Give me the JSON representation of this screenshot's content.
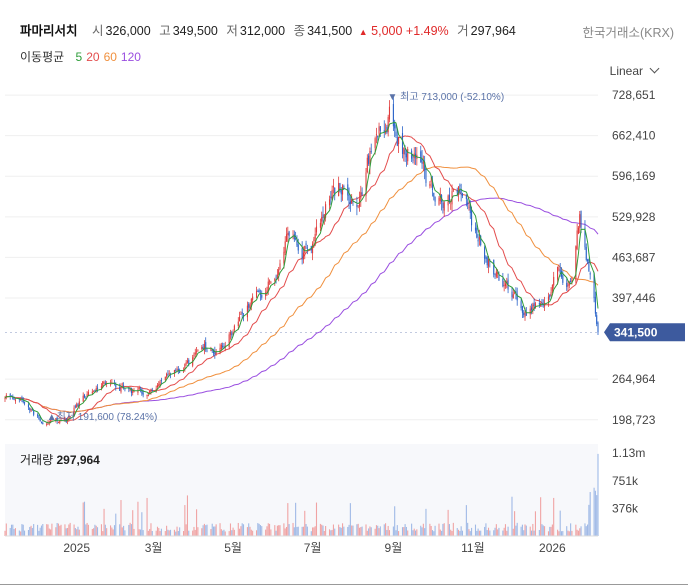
{
  "header": {
    "name": "파마리서치",
    "open_label": "시",
    "open": "326,000",
    "high_label": "고",
    "high": "349,500",
    "low_label": "저",
    "low": "312,000",
    "close_label": "종",
    "close": "341,500",
    "change": "5,000",
    "change_pct": "+1.49%",
    "volume_label": "거",
    "volume": "297,964",
    "exchange": "한국거래소(KRX)"
  },
  "indicator": {
    "label": "이동평균",
    "periods": [
      {
        "value": "5",
        "color": "#2e9d3a"
      },
      {
        "value": "20",
        "color": "#e34d4d"
      },
      {
        "value": "60",
        "color": "#f0903e"
      },
      {
        "value": "120",
        "color": "#9a4fe0"
      }
    ]
  },
  "scale_mode": "Linear",
  "chart_data": {
    "type": "candlestick",
    "price_axis": {
      "ticks": [
        728651,
        662410,
        596169,
        529928,
        463687,
        397446,
        264964,
        198723
      ],
      "tick_labels": [
        "728,651",
        "662,410",
        "596,169",
        "529,928",
        "463,687",
        "397,446",
        "264,964",
        "198,723"
      ],
      "range": [
        182000,
        750000
      ]
    },
    "x_axis": {
      "tick_labels": [
        "2025",
        "3월",
        "5월",
        "7월",
        "9월",
        "11월",
        "2026"
      ],
      "tick_dates": [
        "2025-01-01",
        "2025-03-01",
        "2025-05-01",
        "2025-07-01",
        "2025-09-01",
        "2025-11-01",
        "2026-01-01"
      ],
      "range": [
        "2024-11-07",
        "2026-02-05"
      ]
    },
    "current_price": {
      "value": 341500,
      "label": "341,500",
      "color": "#3d5a9e"
    },
    "max_annotation": {
      "label": "최고",
      "value": "713,000",
      "pct": "(-52.10%)",
      "date": "2025-08-29"
    },
    "min_annotation": {
      "label": "최저",
      "value": "191,600",
      "pct": "(78.24%)",
      "date": "2024-12-09"
    },
    "price_path": [
      [
        "2024-11-07",
        235000
      ],
      [
        "2024-11-20",
        225000
      ],
      [
        "2024-12-09",
        191600
      ],
      [
        "2024-12-25",
        200000
      ],
      [
        "2025-01-10",
        245000
      ],
      [
        "2025-01-20",
        262000
      ],
      [
        "2025-02-05",
        255000
      ],
      [
        "2025-02-25",
        240000
      ],
      [
        "2025-03-15",
        270000
      ],
      [
        "2025-04-05",
        310000
      ],
      [
        "2025-04-25",
        330000
      ],
      [
        "2025-05-10",
        380000
      ],
      [
        "2025-05-25",
        410000
      ],
      [
        "2025-06-05",
        445000
      ],
      [
        "2025-06-15",
        510000
      ],
      [
        "2025-06-30",
        460000
      ],
      [
        "2025-07-15",
        560000
      ],
      [
        "2025-07-25",
        580000
      ],
      [
        "2025-08-05",
        545000
      ],
      [
        "2025-08-15",
        640000
      ],
      [
        "2025-08-29",
        700000
      ],
      [
        "2025-09-10",
        640000
      ],
      [
        "2025-09-25",
        590000
      ],
      [
        "2025-10-05",
        545000
      ],
      [
        "2025-10-20",
        575000
      ],
      [
        "2025-10-30",
        530000
      ],
      [
        "2025-11-10",
        470000
      ],
      [
        "2025-11-25",
        410000
      ],
      [
        "2025-12-10",
        380000
      ],
      [
        "2025-12-25",
        400000
      ],
      [
        "2026-01-05",
        440000
      ],
      [
        "2026-01-15",
        430000
      ],
      [
        "2026-01-22",
        530000
      ],
      [
        "2026-01-27",
        470000
      ],
      [
        "2026-02-01",
        400000
      ],
      [
        "2026-02-05",
        341500
      ]
    ],
    "volume_axis": {
      "ticks": [
        1130000,
        751000,
        376000
      ],
      "tick_labels": [
        "1.13m",
        "751k",
        "376k"
      ],
      "range": [
        0,
        1200000
      ]
    },
    "volume_panel": {
      "label": "거래량",
      "value": "297,964"
    }
  }
}
